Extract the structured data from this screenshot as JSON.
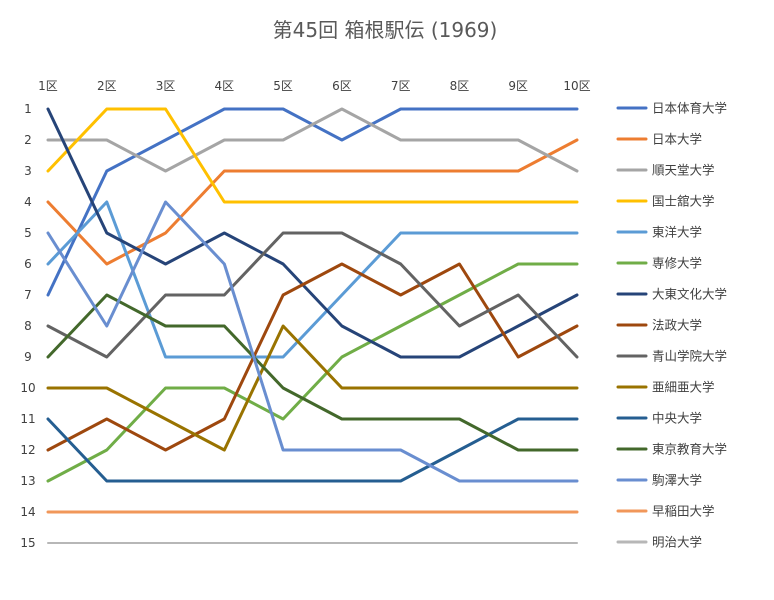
{
  "chart_data": {
    "type": "line",
    "title": "第45回 箱根駅伝 (1969)",
    "xlabel": "",
    "ylabel": "",
    "categories": [
      "1区",
      "2区",
      "3区",
      "4区",
      "5区",
      "6区",
      "7区",
      "8区",
      "9区",
      "10区"
    ],
    "y_ticks": [
      "1",
      "2",
      "3",
      "4",
      "5",
      "6",
      "7",
      "8",
      "9",
      "10",
      "11",
      "12",
      "13",
      "14",
      "15"
    ],
    "ylim": [
      1,
      15
    ],
    "y_reversed": true,
    "grid": false,
    "legend_position": "right",
    "series": [
      {
        "name": "日本体育大学",
        "color": "#4472C4",
        "values": [
          7,
          3,
          2,
          1,
          1,
          2,
          1,
          1,
          1,
          1
        ]
      },
      {
        "name": "日本大学",
        "color": "#ED7D31",
        "values": [
          4,
          6,
          5,
          3,
          3,
          3,
          3,
          3,
          3,
          2
        ]
      },
      {
        "name": "順天堂大学",
        "color": "#A5A5A5",
        "values": [
          2,
          2,
          3,
          2,
          2,
          1,
          2,
          2,
          2,
          3
        ]
      },
      {
        "name": "国士舘大学",
        "color": "#FFC000",
        "values": [
          3,
          1,
          1,
          4,
          4,
          4,
          4,
          4,
          4,
          4
        ]
      },
      {
        "name": "東洋大学",
        "color": "#5B9BD5",
        "values": [
          6,
          4,
          9,
          9,
          9,
          7,
          5,
          5,
          5,
          5
        ]
      },
      {
        "name": "専修大学",
        "color": "#70AD47",
        "values": [
          13,
          12,
          10,
          10,
          11,
          9,
          8,
          7,
          6,
          6
        ]
      },
      {
        "name": "大東文化大学",
        "color": "#264478",
        "values": [
          1,
          5,
          6,
          5,
          6,
          8,
          9,
          9,
          8,
          7
        ]
      },
      {
        "name": "法政大学",
        "color": "#9E480E",
        "values": [
          12,
          11,
          12,
          11,
          7,
          6,
          7,
          6,
          9,
          8
        ]
      },
      {
        "name": "青山学院大学",
        "color": "#636363",
        "values": [
          8,
          9,
          7,
          7,
          5,
          5,
          6,
          8,
          7,
          9
        ]
      },
      {
        "name": "亜細亜大学",
        "color": "#997300",
        "values": [
          10,
          10,
          11,
          12,
          8,
          10,
          10,
          10,
          10,
          10
        ]
      },
      {
        "name": "中央大学",
        "color": "#255E91",
        "values": [
          11,
          13,
          13,
          13,
          13,
          13,
          13,
          12,
          11,
          11
        ]
      },
      {
        "name": "東京教育大学",
        "color": "#43682B",
        "values": [
          9,
          7,
          8,
          8,
          10,
          11,
          11,
          11,
          12,
          12
        ]
      },
      {
        "name": "駒澤大学",
        "color": "#698ED0",
        "values": [
          5,
          8,
          4,
          6,
          12,
          12,
          12,
          13,
          13,
          13
        ]
      },
      {
        "name": "早稲田大学",
        "color": "#F1975A",
        "values": [
          14,
          14,
          14,
          14,
          14,
          14,
          14,
          14,
          14,
          14
        ]
      },
      {
        "name": "明治大学",
        "color": "#B7B7B7",
        "values": [
          15,
          15,
          15,
          15,
          15,
          15,
          15,
          15,
          15,
          15
        ]
      }
    ]
  }
}
